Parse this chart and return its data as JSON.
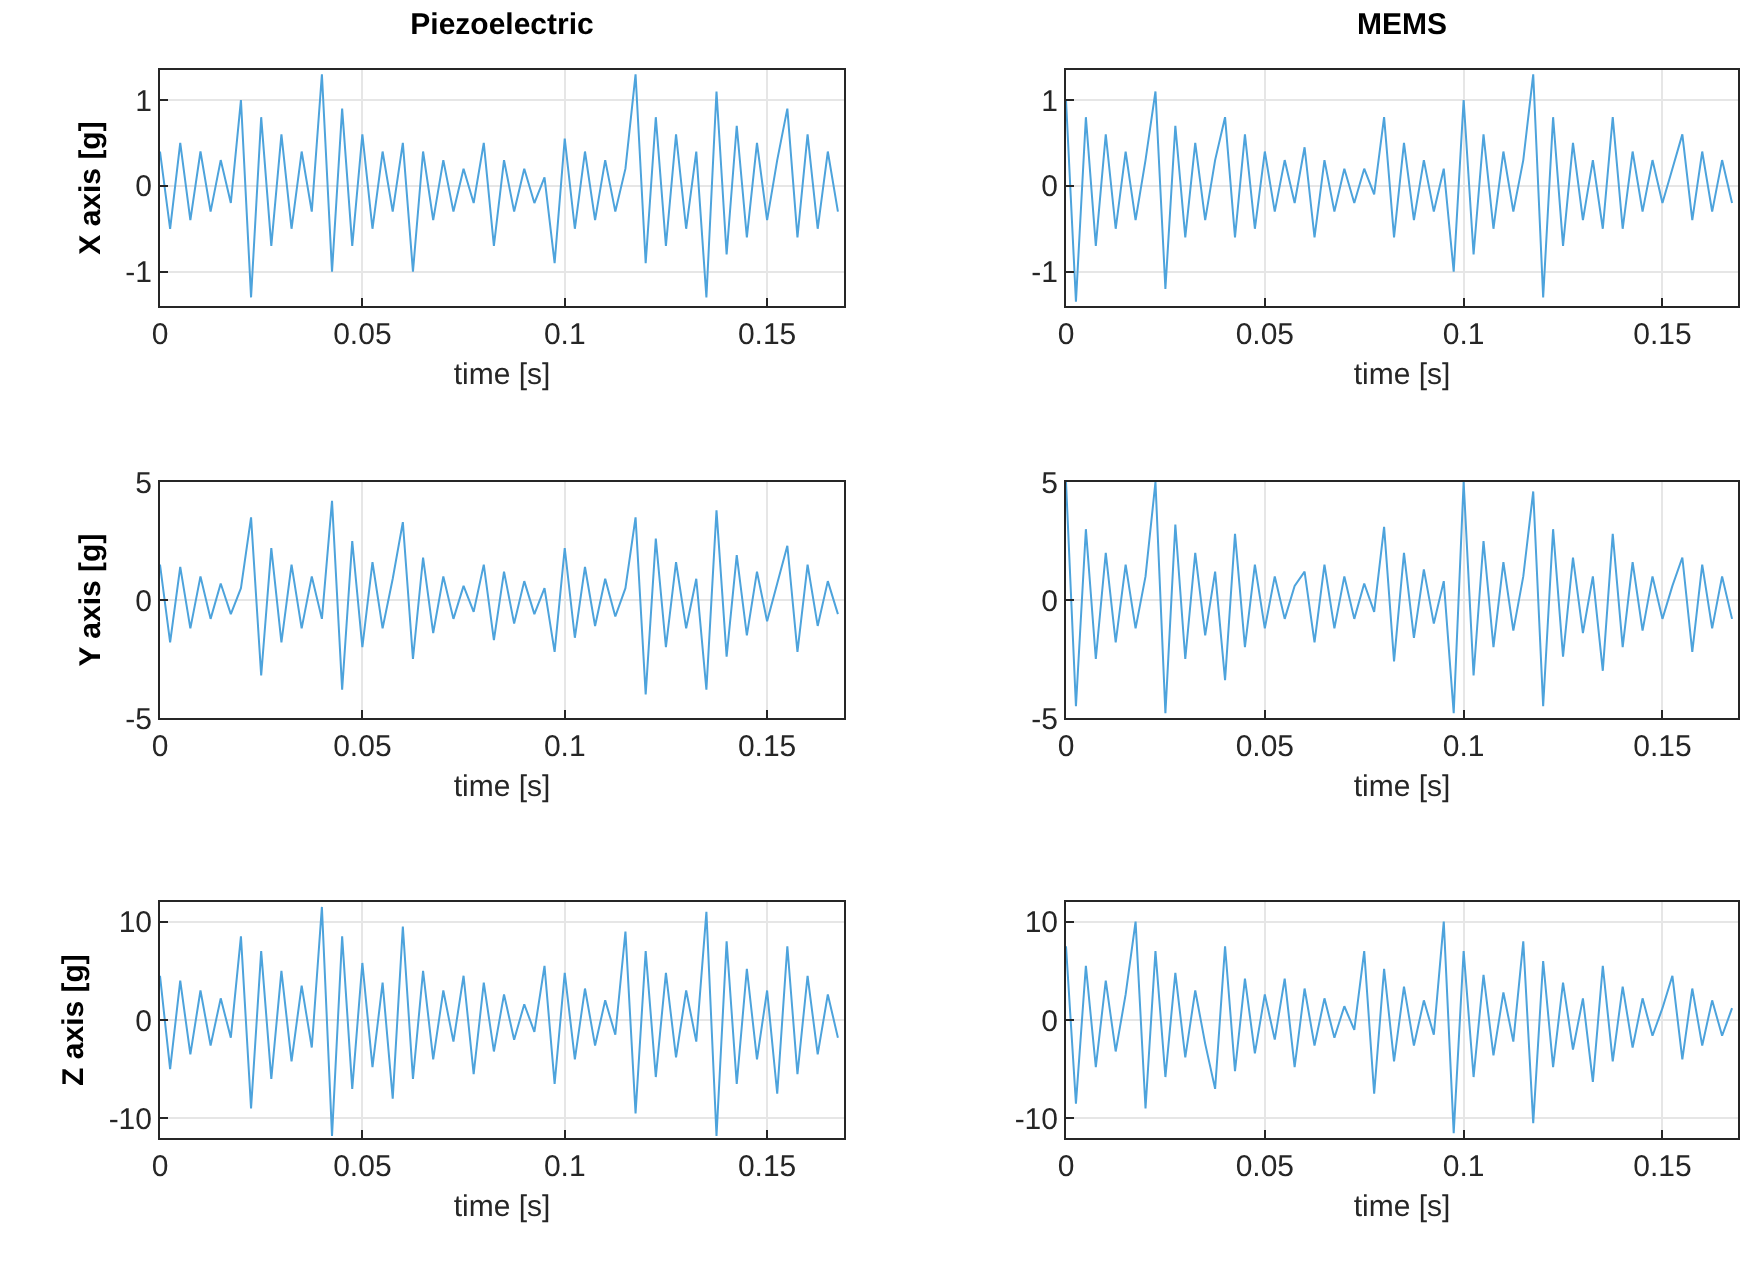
{
  "chart_data": [
    {
      "type": "line",
      "title": "Piezoelectric",
      "xlabel": "time [s]",
      "ylabel": "X axis [g]",
      "xlim": [
        0,
        0.169
      ],
      "xticks": [
        0,
        0.05,
        0.1,
        0.15
      ],
      "ylim": [
        -1.4,
        1.35
      ],
      "yticks": [
        -1,
        0,
        1
      ],
      "grid": true,
      "x": [
        0,
        0.0025,
        0.005,
        0.0075,
        0.01,
        0.0125,
        0.015,
        0.0175,
        0.02,
        0.0225,
        0.025,
        0.0275,
        0.03,
        0.0325,
        0.035,
        0.0375,
        0.04,
        0.0425,
        0.045,
        0.0475,
        0.05,
        0.0525,
        0.055,
        0.0575,
        0.06,
        0.0625,
        0.065,
        0.0675,
        0.07,
        0.0725,
        0.075,
        0.0775,
        0.08,
        0.0825,
        0.085,
        0.0875,
        0.09,
        0.0925,
        0.095,
        0.0975,
        0.1,
        0.1025,
        0.105,
        0.1075,
        0.11,
        0.1125,
        0.115,
        0.1175,
        0.12,
        0.1225,
        0.125,
        0.1275,
        0.13,
        0.1325,
        0.135,
        0.1375,
        0.14,
        0.1425,
        0.145,
        0.1475,
        0.15,
        0.1525,
        0.155,
        0.1575,
        0.16,
        0.1625,
        0.165,
        0.1675
      ],
      "series": [
        {
          "color": "#4da3dc",
          "values": [
            0.4,
            -0.5,
            0.5,
            -0.4,
            0.4,
            -0.3,
            0.3,
            -0.2,
            1.0,
            -1.3,
            0.8,
            -0.7,
            0.6,
            -0.5,
            0.4,
            -0.3,
            1.3,
            -1.0,
            0.9,
            -0.7,
            0.6,
            -0.5,
            0.4,
            -0.3,
            0.5,
            -1.0,
            0.4,
            -0.4,
            0.3,
            -0.3,
            0.2,
            -0.2,
            0.5,
            -0.7,
            0.3,
            -0.3,
            0.2,
            -0.2,
            0.1,
            -0.9,
            0.55,
            -0.5,
            0.4,
            -0.4,
            0.3,
            -0.3,
            0.2,
            1.3,
            -0.9,
            0.8,
            -0.7,
            0.6,
            -0.5,
            0.4,
            -1.3,
            1.1,
            -0.8,
            0.7,
            -0.6,
            0.5,
            -0.4,
            0.3,
            0.9,
            -0.6,
            0.6,
            -0.5,
            0.4,
            -0.3
          ]
        }
      ]
    },
    {
      "type": "line",
      "title": "MEMS",
      "xlabel": "time [s]",
      "xlim": [
        0,
        0.169
      ],
      "xticks": [
        0,
        0.05,
        0.1,
        0.15
      ],
      "ylim": [
        -1.4,
        1.35
      ],
      "yticks": [
        -1,
        0,
        1
      ],
      "grid": true,
      "x": [
        0,
        0.0025,
        0.005,
        0.0075,
        0.01,
        0.0125,
        0.015,
        0.0175,
        0.02,
        0.0225,
        0.025,
        0.0275,
        0.03,
        0.0325,
        0.035,
        0.0375,
        0.04,
        0.0425,
        0.045,
        0.0475,
        0.05,
        0.0525,
        0.055,
        0.0575,
        0.06,
        0.0625,
        0.065,
        0.0675,
        0.07,
        0.0725,
        0.075,
        0.0775,
        0.08,
        0.0825,
        0.085,
        0.0875,
        0.09,
        0.0925,
        0.095,
        0.0975,
        0.1,
        0.1025,
        0.105,
        0.1075,
        0.11,
        0.1125,
        0.115,
        0.1175,
        0.12,
        0.1225,
        0.125,
        0.1275,
        0.13,
        0.1325,
        0.135,
        0.1375,
        0.14,
        0.1425,
        0.145,
        0.1475,
        0.15,
        0.1525,
        0.155,
        0.1575,
        0.16,
        0.1625,
        0.165,
        0.1675
      ],
      "series": [
        {
          "color": "#4da3dc",
          "values": [
            1.0,
            -1.35,
            0.8,
            -0.7,
            0.6,
            -0.5,
            0.4,
            -0.4,
            0.3,
            1.1,
            -1.2,
            0.7,
            -0.6,
            0.5,
            -0.4,
            0.3,
            0.8,
            -0.6,
            0.6,
            -0.5,
            0.4,
            -0.3,
            0.3,
            -0.2,
            0.45,
            -0.6,
            0.3,
            -0.3,
            0.2,
            -0.2,
            0.2,
            -0.1,
            0.8,
            -0.6,
            0.5,
            -0.4,
            0.3,
            -0.3,
            0.2,
            -1.0,
            1.0,
            -0.8,
            0.6,
            -0.5,
            0.4,
            -0.3,
            0.3,
            1.3,
            -1.3,
            0.8,
            -0.7,
            0.5,
            -0.4,
            0.3,
            -0.5,
            0.8,
            -0.5,
            0.4,
            -0.3,
            0.3,
            -0.2,
            0.2,
            0.6,
            -0.4,
            0.4,
            -0.3,
            0.3,
            -0.2
          ]
        }
      ]
    },
    {
      "type": "line",
      "xlabel": "time [s]",
      "ylabel": "Y axis [g]",
      "xlim": [
        0,
        0.169
      ],
      "xticks": [
        0,
        0.05,
        0.1,
        0.15
      ],
      "ylim": [
        -5,
        5
      ],
      "yticks": [
        -5,
        0,
        5
      ],
      "grid": true,
      "x": [
        0,
        0.0025,
        0.005,
        0.0075,
        0.01,
        0.0125,
        0.015,
        0.0175,
        0.02,
        0.0225,
        0.025,
        0.0275,
        0.03,
        0.0325,
        0.035,
        0.0375,
        0.04,
        0.0425,
        0.045,
        0.0475,
        0.05,
        0.0525,
        0.055,
        0.0575,
        0.06,
        0.0625,
        0.065,
        0.0675,
        0.07,
        0.0725,
        0.075,
        0.0775,
        0.08,
        0.0825,
        0.085,
        0.0875,
        0.09,
        0.0925,
        0.095,
        0.0975,
        0.1,
        0.1025,
        0.105,
        0.1075,
        0.11,
        0.1125,
        0.115,
        0.1175,
        0.12,
        0.1225,
        0.125,
        0.1275,
        0.13,
        0.1325,
        0.135,
        0.1375,
        0.14,
        0.1425,
        0.145,
        0.1475,
        0.15,
        0.1525,
        0.155,
        0.1575,
        0.16,
        0.1625,
        0.165,
        0.1675
      ],
      "series": [
        {
          "color": "#4da3dc",
          "values": [
            1.5,
            -1.8,
            1.4,
            -1.2,
            1.0,
            -0.8,
            0.7,
            -0.6,
            0.5,
            3.5,
            -3.2,
            2.2,
            -1.8,
            1.5,
            -1.2,
            1.0,
            -0.8,
            4.2,
            -3.8,
            2.5,
            -2.0,
            1.6,
            -1.2,
            0.9,
            3.3,
            -2.5,
            1.8,
            -1.4,
            1.0,
            -0.8,
            0.6,
            -0.5,
            1.5,
            -1.7,
            1.2,
            -1.0,
            0.8,
            -0.6,
            0.5,
            -2.2,
            2.2,
            -1.6,
            1.4,
            -1.1,
            0.9,
            -0.7,
            0.5,
            3.5,
            -4.0,
            2.6,
            -2.0,
            1.6,
            -1.2,
            0.9,
            -3.8,
            3.8,
            -2.4,
            1.9,
            -1.5,
            1.2,
            -0.9,
            0.7,
            2.3,
            -2.2,
            1.5,
            -1.1,
            0.8,
            -0.6
          ]
        }
      ]
    },
    {
      "type": "line",
      "xlabel": "time [s]",
      "xlim": [
        0,
        0.169
      ],
      "xticks": [
        0,
        0.05,
        0.1,
        0.15
      ],
      "ylim": [
        -5,
        5
      ],
      "yticks": [
        -5,
        0,
        5
      ],
      "grid": true,
      "x": [
        0,
        0.0025,
        0.005,
        0.0075,
        0.01,
        0.0125,
        0.015,
        0.0175,
        0.02,
        0.0225,
        0.025,
        0.0275,
        0.03,
        0.0325,
        0.035,
        0.0375,
        0.04,
        0.0425,
        0.045,
        0.0475,
        0.05,
        0.0525,
        0.055,
        0.0575,
        0.06,
        0.0625,
        0.065,
        0.0675,
        0.07,
        0.0725,
        0.075,
        0.0775,
        0.08,
        0.0825,
        0.085,
        0.0875,
        0.09,
        0.0925,
        0.095,
        0.0975,
        0.1,
        0.1025,
        0.105,
        0.1075,
        0.11,
        0.1125,
        0.115,
        0.1175,
        0.12,
        0.1225,
        0.125,
        0.1275,
        0.13,
        0.1325,
        0.135,
        0.1375,
        0.14,
        0.1425,
        0.145,
        0.1475,
        0.15,
        0.1525,
        0.155,
        0.1575,
        0.16,
        0.1625,
        0.165,
        0.1675
      ],
      "series": [
        {
          "color": "#4da3dc",
          "values": [
            5.0,
            -4.5,
            3.0,
            -2.5,
            2.0,
            -1.8,
            1.5,
            -1.2,
            1.0,
            5.0,
            -4.8,
            3.2,
            -2.5,
            2.0,
            -1.5,
            1.2,
            -3.4,
            2.8,
            -2.0,
            1.5,
            -1.2,
            1.0,
            -0.8,
            0.6,
            1.2,
            -1.8,
            1.5,
            -1.2,
            1.0,
            -0.8,
            0.7,
            -0.5,
            3.1,
            -2.6,
            2.0,
            -1.6,
            1.3,
            -1.0,
            0.8,
            -4.8,
            5.0,
            -3.2,
            2.5,
            -2.0,
            1.6,
            -1.3,
            1.0,
            4.6,
            -4.5,
            3.0,
            -2.4,
            1.8,
            -1.4,
            1.0,
            -3.0,
            2.8,
            -2.0,
            1.6,
            -1.3,
            1.0,
            -0.8,
            0.6,
            1.8,
            -2.2,
            1.5,
            -1.2,
            1.0,
            -0.8
          ]
        }
      ]
    },
    {
      "type": "line",
      "xlabel": "time [s]",
      "ylabel": "Z axis [g]",
      "xlim": [
        0,
        0.169
      ],
      "xticks": [
        0,
        0.05,
        0.1,
        0.15
      ],
      "ylim": [
        -12,
        12
      ],
      "yticks": [
        -10,
        0,
        10
      ],
      "grid": true,
      "x": [
        0,
        0.0025,
        0.005,
        0.0075,
        0.01,
        0.0125,
        0.015,
        0.0175,
        0.02,
        0.0225,
        0.025,
        0.0275,
        0.03,
        0.0325,
        0.035,
        0.0375,
        0.04,
        0.0425,
        0.045,
        0.0475,
        0.05,
        0.0525,
        0.055,
        0.0575,
        0.06,
        0.0625,
        0.065,
        0.0675,
        0.07,
        0.0725,
        0.075,
        0.0775,
        0.08,
        0.0825,
        0.085,
        0.0875,
        0.09,
        0.0925,
        0.095,
        0.0975,
        0.1,
        0.1025,
        0.105,
        0.1075,
        0.11,
        0.1125,
        0.115,
        0.1175,
        0.12,
        0.1225,
        0.125,
        0.1275,
        0.13,
        0.1325,
        0.135,
        0.1375,
        0.14,
        0.1425,
        0.145,
        0.1475,
        0.15,
        0.1525,
        0.155,
        0.1575,
        0.16,
        0.1625,
        0.165,
        0.1675
      ],
      "series": [
        {
          "color": "#4da3dc",
          "values": [
            4.5,
            -5.0,
            4.0,
            -3.5,
            3.0,
            -2.6,
            2.2,
            -1.8,
            8.5,
            -9.0,
            7.0,
            -6.0,
            5.0,
            -4.2,
            3.5,
            -2.8,
            11.5,
            -11.8,
            8.5,
            -7.0,
            5.8,
            -4.8,
            3.8,
            -8.0,
            9.5,
            -6.0,
            5.0,
            -4.0,
            3.0,
            -2.2,
            4.5,
            -5.5,
            3.8,
            -3.2,
            2.6,
            -2.0,
            1.6,
            -1.2,
            5.5,
            -6.5,
            4.8,
            -4.0,
            3.2,
            -2.6,
            2.0,
            -1.5,
            9.0,
            -9.5,
            7.0,
            -5.8,
            4.8,
            -3.8,
            3.0,
            -2.2,
            11.0,
            -11.8,
            8.0,
            -6.5,
            5.2,
            -4.0,
            3.0,
            -7.5,
            7.5,
            -5.5,
            4.5,
            -3.5,
            2.6,
            -1.8
          ]
        }
      ]
    },
    {
      "type": "line",
      "xlabel": "time [s]",
      "xlim": [
        0,
        0.169
      ],
      "xticks": [
        0,
        0.05,
        0.1,
        0.15
      ],
      "ylim": [
        -12,
        12
      ],
      "yticks": [
        -10,
        0,
        10
      ],
      "grid": true,
      "x": [
        0,
        0.0025,
        0.005,
        0.0075,
        0.01,
        0.0125,
        0.015,
        0.0175,
        0.02,
        0.0225,
        0.025,
        0.0275,
        0.03,
        0.0325,
        0.035,
        0.0375,
        0.04,
        0.0425,
        0.045,
        0.0475,
        0.05,
        0.0525,
        0.055,
        0.0575,
        0.06,
        0.0625,
        0.065,
        0.0675,
        0.07,
        0.0725,
        0.075,
        0.0775,
        0.08,
        0.0825,
        0.085,
        0.0875,
        0.09,
        0.0925,
        0.095,
        0.0975,
        0.1,
        0.1025,
        0.105,
        0.1075,
        0.11,
        0.1125,
        0.115,
        0.1175,
        0.12,
        0.1225,
        0.125,
        0.1275,
        0.13,
        0.1325,
        0.135,
        0.1375,
        0.14,
        0.1425,
        0.145,
        0.1475,
        0.15,
        0.1525,
        0.155,
        0.1575,
        0.16,
        0.1625,
        0.165,
        0.1675
      ],
      "series": [
        {
          "color": "#4da3dc",
          "values": [
            7.5,
            -8.5,
            5.5,
            -4.8,
            4.0,
            -3.2,
            2.6,
            10.0,
            -9.0,
            7.0,
            -5.8,
            4.8,
            -3.8,
            3.0,
            -2.4,
            -7.0,
            7.5,
            -5.2,
            4.2,
            -3.4,
            2.6,
            -2.0,
            4.2,
            -4.8,
            3.2,
            -2.6,
            2.2,
            -1.8,
            1.4,
            -1.0,
            7.0,
            -7.5,
            5.2,
            -4.2,
            3.4,
            -2.6,
            2.0,
            -1.5,
            10.0,
            -11.5,
            7.0,
            -5.8,
            4.6,
            -3.6,
            2.8,
            -2.2,
            8.0,
            -10.5,
            6.0,
            -4.8,
            3.8,
            -3.0,
            2.2,
            -6.3,
            5.5,
            -4.2,
            3.4,
            -2.8,
            2.2,
            -1.6,
            1.2,
            4.5,
            -4.0,
            3.2,
            -2.6,
            2.0,
            -1.6,
            1.2
          ]
        }
      ]
    }
  ]
}
